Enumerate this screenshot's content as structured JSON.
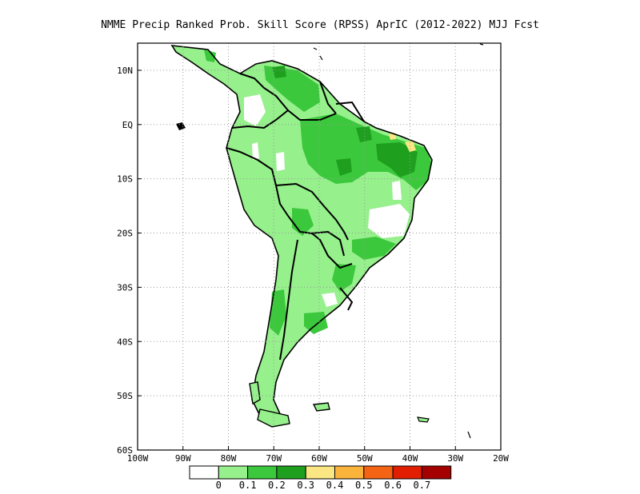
{
  "title": "NMME Precip Ranked Prob. Skill Score (RPSS) AprIC (2012-2022) MJJ Fcst",
  "map": {
    "lon_ticks": [
      "100W",
      "90W",
      "80W",
      "70W",
      "60W",
      "50W",
      "40W",
      "30W",
      "20W"
    ],
    "lat_ticks": [
      "10N",
      "EQ",
      "10S",
      "20S",
      "30S",
      "40S",
      "50S",
      "60S"
    ],
    "lon_range": [
      -100,
      -20
    ],
    "lat_range": [
      -60,
      15
    ],
    "grid": "dotted"
  },
  "legend": {
    "labels": [
      "0",
      "0.1",
      "0.2",
      "0.3",
      "0.4",
      "0.5",
      "0.6",
      "0.7"
    ],
    "colors": [
      "#ffffff",
      "#96f08c",
      "#3cc83c",
      "#1ea01e",
      "#fae682",
      "#fab43c",
      "#f56414",
      "#e11e00",
      "#a50000"
    ]
  }
}
